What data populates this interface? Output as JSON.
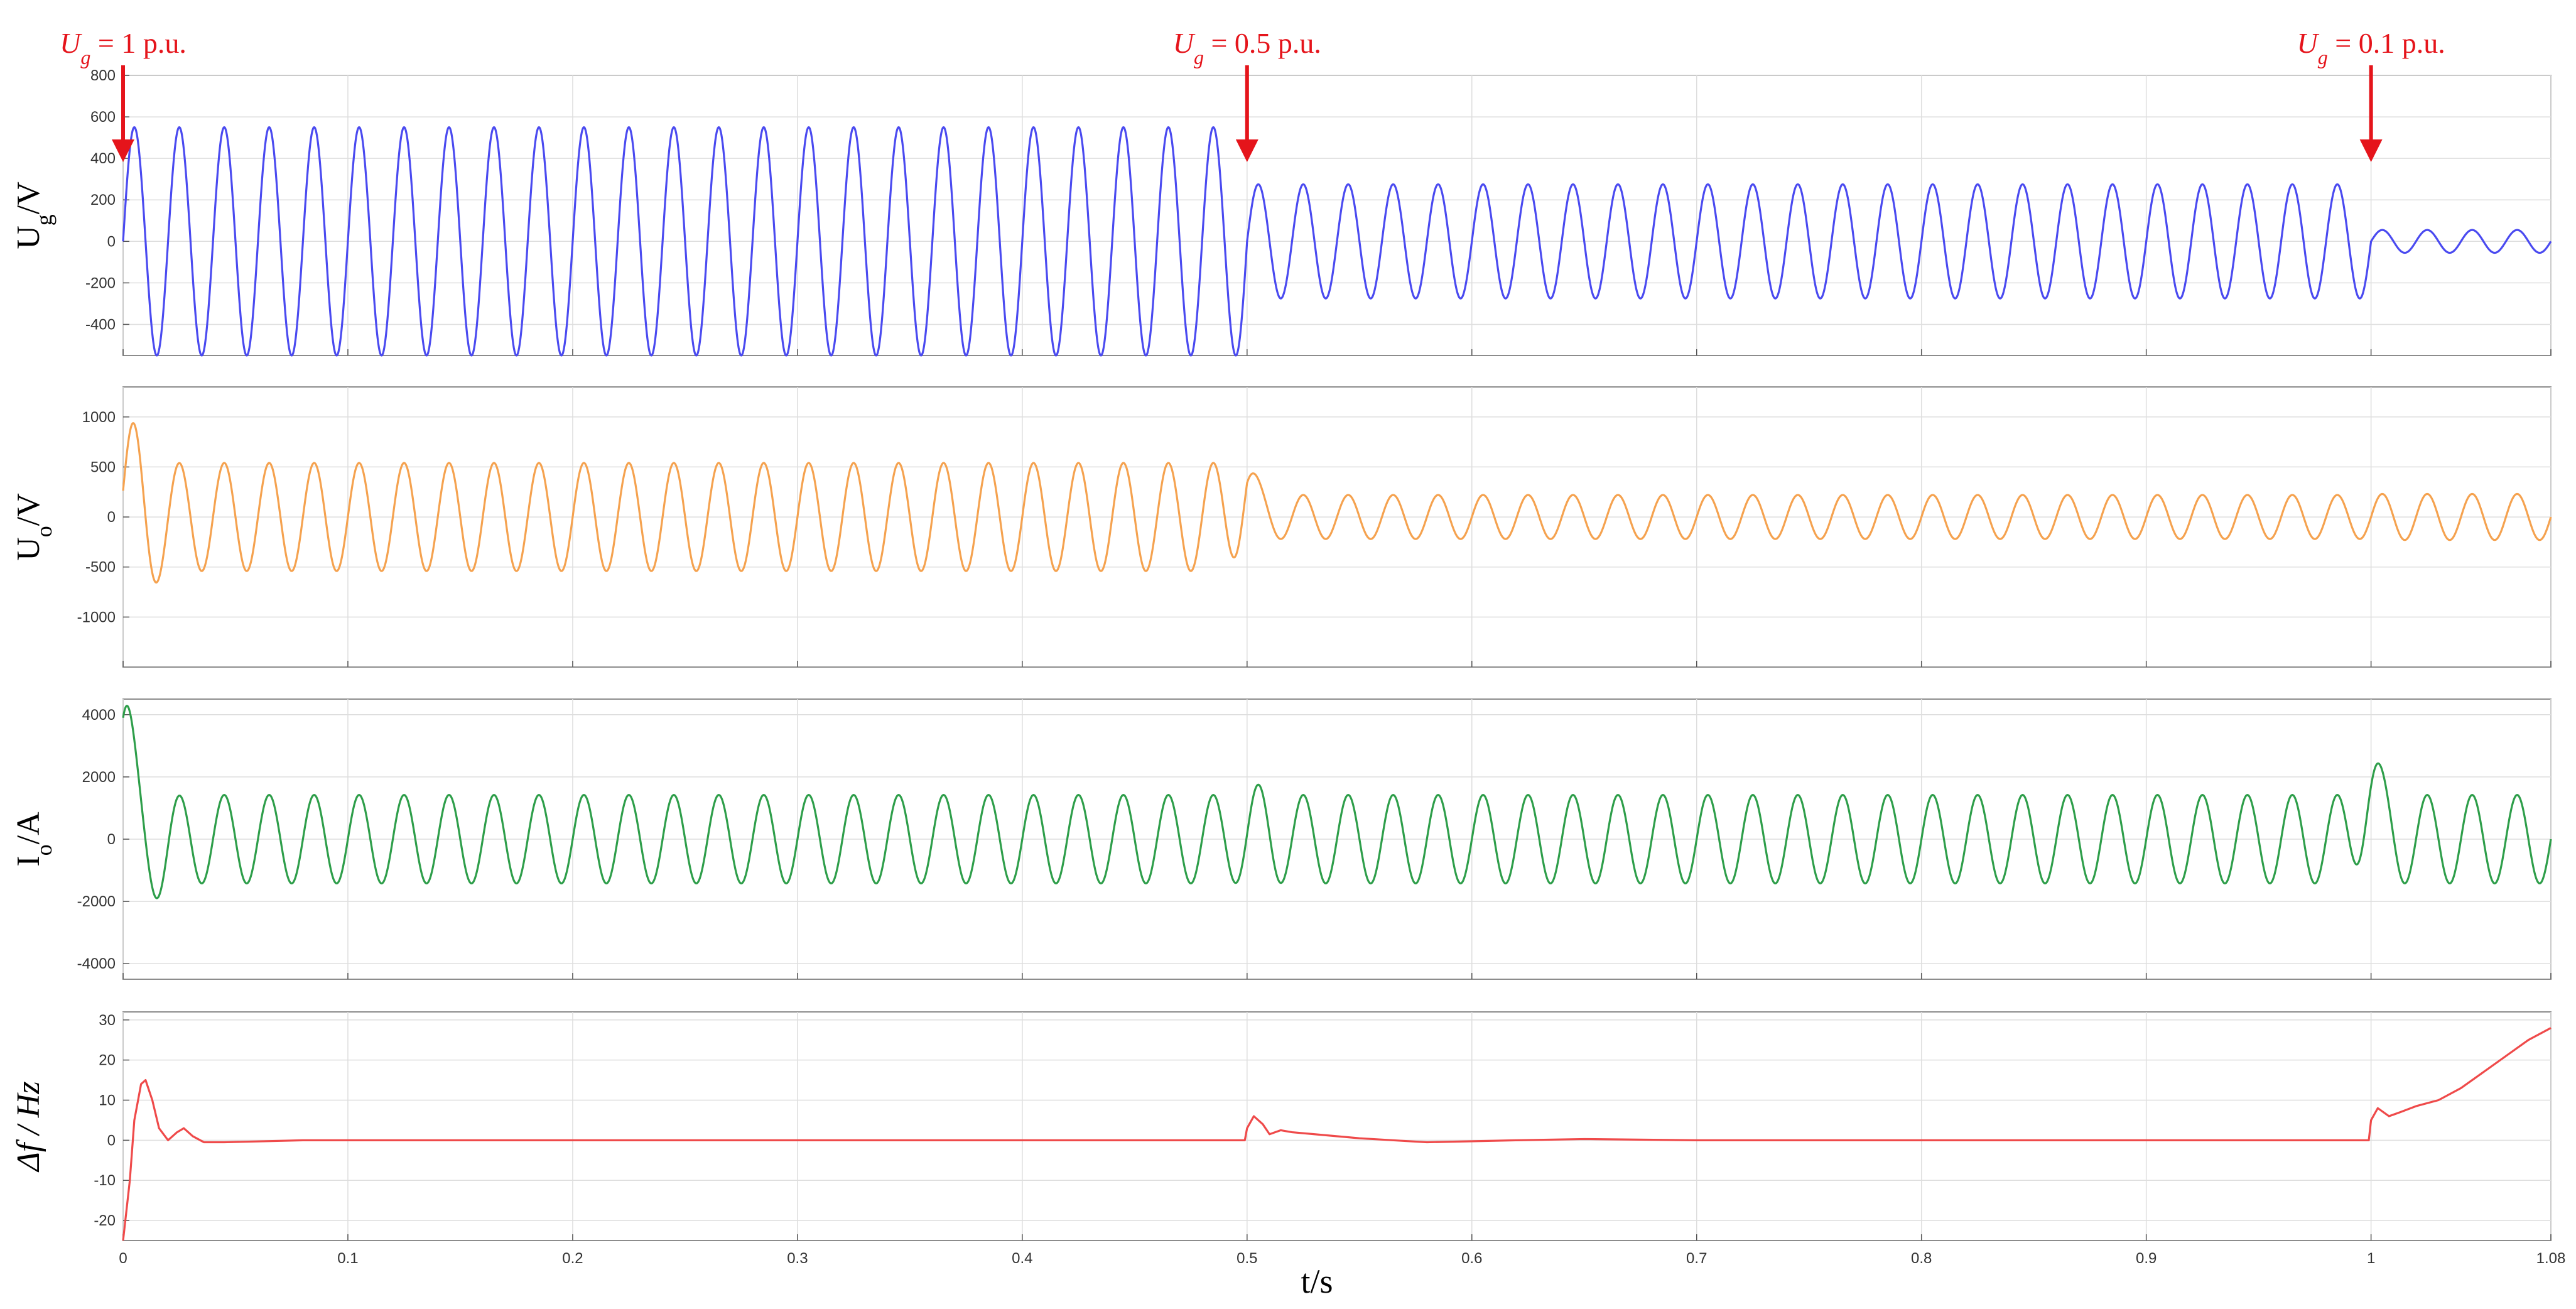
{
  "chart_data": {
    "type": "line",
    "xlabel": "t/s",
    "xlim": [
      0,
      1.08
    ],
    "x_ticks": [
      "0",
      "0.1",
      "0.2",
      "0.3",
      "0.4",
      "0.5",
      "0.6",
      "0.7",
      "0.8",
      "0.9",
      "1",
      "1.08"
    ],
    "grid": true,
    "annotations": [
      {
        "label_main": "U",
        "label_sub": "g",
        "label_rest": " = 1 p.u.",
        "x": 0
      },
      {
        "label_main": "U",
        "label_sub": "g",
        "label_rest": " = 0.5 p.u.",
        "x": 0.5
      },
      {
        "label_main": "U",
        "label_sub": "g",
        "label_rest": " = 0.1 p.u.",
        "x": 1.0
      }
    ],
    "panels": [
      {
        "ylabel_main": "U",
        "ylabel_sub": "g",
        "ylabel_rest": "/V",
        "ylim": [
          -550,
          800
        ],
        "y_ticks": [
          800,
          600,
          400,
          200,
          0,
          -200,
          -400
        ],
        "color": "#4a4af0",
        "signal": {
          "frequency_hz": 50,
          "segments": [
            {
              "t_start": 0.0,
              "t_end": 0.5,
              "amplitude": 550
            },
            {
              "t_start": 0.5,
              "t_end": 1.0,
              "amplitude": 275
            },
            {
              "t_start": 1.0,
              "t_end": 1.08,
              "amplitude": 55
            }
          ]
        }
      },
      {
        "ylabel_main": "U",
        "ylabel_sub": "o",
        "ylabel_rest": "/V",
        "ylim": [
          -1500,
          1300
        ],
        "y_ticks": [
          1000,
          500,
          0,
          -500,
          -1000
        ],
        "color": "#f5a24f",
        "signal": {
          "frequency_hz": 50,
          "segments": [
            {
              "t_start": 0.0,
              "t_end": 0.5,
              "amplitude": 540
            },
            {
              "t_start": 0.5,
              "t_end": 1.0,
              "amplitude": 220
            },
            {
              "t_start": 1.0,
              "t_end": 1.08,
              "amplitude": 230
            }
          ],
          "transients": [
            {
              "t": 0.004,
              "value": 950
            },
            {
              "t": 0.012,
              "value": -480
            },
            {
              "t": 0.5,
              "value": 340
            }
          ]
        }
      },
      {
        "ylabel_main": "I",
        "ylabel_sub": "o",
        "ylabel_rest": "/A",
        "ylim": [
          -4500,
          4500
        ],
        "y_ticks": [
          4000,
          2000,
          0,
          -2000,
          -4000
        ],
        "color": "#2e9e4a",
        "signal": {
          "frequency_hz": 50,
          "segments": [
            {
              "t_start": 0.0,
              "t_end": 1.08,
              "amplitude": 1420
            }
          ],
          "transients": [
            {
              "t": 0.0,
              "value": 3900
            },
            {
              "t": 0.015,
              "value": -1900
            },
            {
              "t": 0.505,
              "value": 1750
            },
            {
              "t": 1.0,
              "value": 1700
            }
          ]
        }
      },
      {
        "ylabel_main": "Δf / Hz",
        "ylabel_sub": "",
        "ylabel_rest": "",
        "ylim": [
          -25,
          32
        ],
        "y_ticks": [
          30,
          20,
          10,
          0,
          -10,
          -20
        ],
        "color": "#ef4a4a",
        "points": [
          [
            0.0,
            -25
          ],
          [
            0.003,
            -10
          ],
          [
            0.005,
            5
          ],
          [
            0.008,
            14
          ],
          [
            0.01,
            15
          ],
          [
            0.013,
            10
          ],
          [
            0.016,
            3
          ],
          [
            0.02,
            0
          ],
          [
            0.024,
            2
          ],
          [
            0.027,
            3
          ],
          [
            0.031,
            1
          ],
          [
            0.036,
            -0.5
          ],
          [
            0.045,
            -0.5
          ],
          [
            0.08,
            0
          ],
          [
            0.1,
            0
          ],
          [
            0.3,
            0
          ],
          [
            0.499,
            0
          ],
          [
            0.5,
            3
          ],
          [
            0.503,
            6
          ],
          [
            0.507,
            4
          ],
          [
            0.51,
            1.5
          ],
          [
            0.515,
            2.5
          ],
          [
            0.52,
            2
          ],
          [
            0.53,
            1.5
          ],
          [
            0.55,
            0.5
          ],
          [
            0.58,
            -0.5
          ],
          [
            0.62,
            0
          ],
          [
            0.65,
            0.3
          ],
          [
            0.7,
            0
          ],
          [
            0.8,
            0
          ],
          [
            0.9,
            0
          ],
          [
            0.999,
            0
          ],
          [
            1.0,
            5
          ],
          [
            1.003,
            8
          ],
          [
            1.008,
            6
          ],
          [
            1.013,
            7
          ],
          [
            1.02,
            8.5
          ],
          [
            1.03,
            10
          ],
          [
            1.04,
            13
          ],
          [
            1.05,
            17
          ],
          [
            1.06,
            21
          ],
          [
            1.07,
            25
          ],
          [
            1.08,
            28
          ]
        ]
      }
    ]
  }
}
